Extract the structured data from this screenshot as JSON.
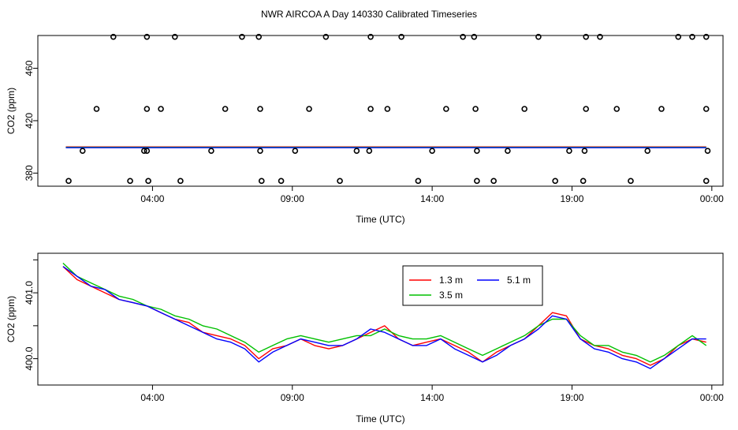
{
  "title": "NWR AIRCOA A  Day 140330  Calibrated Timeseries",
  "chart_data": [
    {
      "type": "scatter",
      "title": "",
      "xlabel": "Time (UTC)",
      "ylabel": "CO2 (ppm)",
      "xunit": "hours UTC",
      "xlim": [
        -0.1,
        24.4
      ],
      "ylim": [
        370,
        485
      ],
      "xticks": [
        {
          "value": 4,
          "label": "04:00"
        },
        {
          "value": 9,
          "label": "09:00"
        },
        {
          "value": 14,
          "label": "14:00"
        },
        {
          "value": 19,
          "label": "19:00"
        },
        {
          "value": 24,
          "label": "00:00"
        }
      ],
      "yticks": [
        {
          "value": 380,
          "label": "380"
        },
        {
          "value": 420,
          "label": "420"
        },
        {
          "value": 460,
          "label": "460"
        }
      ],
      "grid": false,
      "points": [
        {
          "x": 1.0,
          "y": 374
        },
        {
          "x": 1.5,
          "y": 397
        },
        {
          "x": 2.0,
          "y": 429
        },
        {
          "x": 2.6,
          "y": 484
        },
        {
          "x": 3.2,
          "y": 374
        },
        {
          "x": 3.7,
          "y": 397
        },
        {
          "x": 4.3,
          "y": 429
        },
        {
          "x": 3.85,
          "y": 374
        },
        {
          "x": 4.8,
          "y": 484
        },
        {
          "x": 5.0,
          "y": 374
        },
        {
          "x": 6.1,
          "y": 397
        },
        {
          "x": 6.6,
          "y": 429
        },
        {
          "x": 7.2,
          "y": 484
        },
        {
          "x": 7.8,
          "y": 484
        },
        {
          "x": 7.9,
          "y": 374
        },
        {
          "x": 7.85,
          "y": 397
        },
        {
          "x": 8.6,
          "y": 374
        },
        {
          "x": 9.1,
          "y": 397
        },
        {
          "x": 9.6,
          "y": 429
        },
        {
          "x": 10.2,
          "y": 484
        },
        {
          "x": 10.7,
          "y": 374
        },
        {
          "x": 11.3,
          "y": 397
        },
        {
          "x": 11.8,
          "y": 429
        },
        {
          "x": 12.4,
          "y": 429
        },
        {
          "x": 12.9,
          "y": 484
        },
        {
          "x": 13.5,
          "y": 374
        },
        {
          "x": 14.0,
          "y": 397
        },
        {
          "x": 14.5,
          "y": 429
        },
        {
          "x": 15.1,
          "y": 484
        },
        {
          "x": 15.6,
          "y": 374
        },
        {
          "x": 16.2,
          "y": 374
        },
        {
          "x": 16.7,
          "y": 397
        },
        {
          "x": 17.3,
          "y": 429
        },
        {
          "x": 17.8,
          "y": 484
        },
        {
          "x": 18.4,
          "y": 374
        },
        {
          "x": 18.9,
          "y": 397
        },
        {
          "x": 19.5,
          "y": 429
        },
        {
          "x": 20.0,
          "y": 484
        },
        {
          "x": 20.6,
          "y": 429
        },
        {
          "x": 21.1,
          "y": 374
        },
        {
          "x": 21.7,
          "y": 397
        },
        {
          "x": 22.2,
          "y": 429
        },
        {
          "x": 22.8,
          "y": 484
        },
        {
          "x": 23.3,
          "y": 484
        },
        {
          "x": 23.8,
          "y": 374
        },
        {
          "x": 3.8,
          "y": 484
        },
        {
          "x": 3.8,
          "y": 429
        },
        {
          "x": 3.8,
          "y": 397
        },
        {
          "x": 7.85,
          "y": 429
        },
        {
          "x": 11.8,
          "y": 484
        },
        {
          "x": 11.75,
          "y": 397
        },
        {
          "x": 15.5,
          "y": 484
        },
        {
          "x": 15.55,
          "y": 429
        },
        {
          "x": 15.6,
          "y": 397
        },
        {
          "x": 19.4,
          "y": 374
        },
        {
          "x": 19.5,
          "y": 484
        },
        {
          "x": 19.45,
          "y": 397
        },
        {
          "x": 23.8,
          "y": 429
        },
        {
          "x": 23.85,
          "y": 397
        },
        {
          "x": 23.8,
          "y": 484
        }
      ],
      "series": [
        {
          "color": "#ff0000",
          "level": 400.0
        },
        {
          "color": "#00c000",
          "level": 400.0
        },
        {
          "color": "#0000ff",
          "level": 400.0
        }
      ]
    },
    {
      "type": "line",
      "title": "",
      "xlabel": "Time (UTC)",
      "ylabel": "CO2 (ppm)",
      "xunit": "hours UTC",
      "xlim": [
        -0.1,
        24.4
      ],
      "ylim": [
        399.6,
        401.6
      ],
      "xticks": [
        {
          "value": 4,
          "label": "04:00"
        },
        {
          "value": 9,
          "label": "09:00"
        },
        {
          "value": 14,
          "label": "14:00"
        },
        {
          "value": 19,
          "label": "19:00"
        },
        {
          "value": 24,
          "label": "00:00"
        }
      ],
      "yticks": [
        {
          "value": 400.0,
          "label": "400.0"
        },
        {
          "value": 400.5,
          "label": ""
        },
        {
          "value": 401.0,
          "label": "401.0"
        },
        {
          "value": 401.5,
          "label": ""
        }
      ],
      "grid": false,
      "legend": {
        "position": "top-right"
      },
      "x": [
        0.8,
        1.3,
        1.8,
        2.3,
        2.8,
        3.3,
        3.8,
        4.3,
        4.8,
        5.3,
        5.8,
        6.3,
        6.8,
        7.3,
        7.8,
        8.3,
        8.8,
        9.3,
        9.8,
        10.3,
        10.8,
        11.3,
        11.8,
        12.3,
        12.8,
        13.3,
        13.8,
        14.3,
        14.8,
        15.3,
        15.8,
        16.3,
        16.8,
        17.3,
        17.8,
        18.3,
        18.8,
        19.3,
        19.8,
        20.3,
        20.8,
        21.3,
        21.8,
        22.3,
        22.8,
        23.3,
        23.8
      ],
      "series": [
        {
          "name": "1.3 m",
          "color": "#ff0000",
          "values": [
            401.4,
            401.2,
            401.1,
            401.0,
            400.9,
            400.85,
            400.8,
            400.7,
            400.6,
            400.55,
            400.4,
            400.35,
            400.3,
            400.2,
            400.0,
            400.15,
            400.2,
            400.3,
            400.2,
            400.15,
            400.2,
            400.3,
            400.4,
            400.5,
            400.3,
            400.2,
            400.25,
            400.3,
            400.2,
            400.1,
            399.95,
            400.1,
            400.2,
            400.3,
            400.5,
            400.7,
            400.65,
            400.3,
            400.2,
            400.15,
            400.05,
            400.0,
            399.9,
            400.0,
            400.2,
            400.3,
            400.25
          ]
        },
        {
          "name": "3.5 m",
          "color": "#00c000",
          "values": [
            401.45,
            401.25,
            401.15,
            401.05,
            400.95,
            400.9,
            400.8,
            400.75,
            400.65,
            400.6,
            400.5,
            400.45,
            400.35,
            400.25,
            400.1,
            400.2,
            400.3,
            400.35,
            400.3,
            400.25,
            400.3,
            400.35,
            400.35,
            400.45,
            400.35,
            400.3,
            400.3,
            400.35,
            400.25,
            400.15,
            400.05,
            400.15,
            400.25,
            400.35,
            400.5,
            400.6,
            400.6,
            400.35,
            400.2,
            400.2,
            400.1,
            400.05,
            399.95,
            400.05,
            400.2,
            400.35,
            400.2
          ]
        },
        {
          "name": "5.1 m",
          "color": "#0000ff",
          "values": [
            401.4,
            401.25,
            401.1,
            401.05,
            400.9,
            400.85,
            400.8,
            400.7,
            400.6,
            400.5,
            400.4,
            400.3,
            400.25,
            400.15,
            399.95,
            400.1,
            400.2,
            400.3,
            400.25,
            400.2,
            400.2,
            400.3,
            400.45,
            400.4,
            400.3,
            400.2,
            400.2,
            400.3,
            400.15,
            400.05,
            399.95,
            400.05,
            400.2,
            400.3,
            400.45,
            400.65,
            400.6,
            400.3,
            400.15,
            400.1,
            400.0,
            399.95,
            399.85,
            400.0,
            400.15,
            400.3,
            400.3
          ]
        }
      ]
    }
  ]
}
